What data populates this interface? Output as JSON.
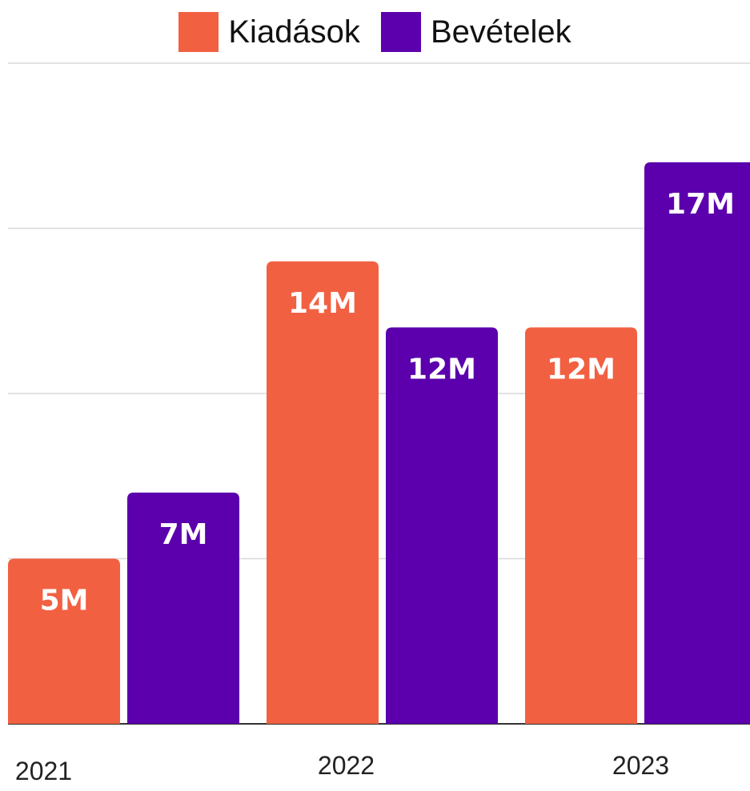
{
  "chart_data": {
    "type": "bar",
    "categories": [
      "2021",
      "2022",
      "2023"
    ],
    "series": [
      {
        "name": "Kiadások",
        "values": [
          5,
          14,
          12
        ],
        "labels": [
          "5M",
          "14M",
          "12M"
        ],
        "color": "#F26042"
      },
      {
        "name": "Bevételek",
        "values": [
          7,
          12,
          17
        ],
        "labels": [
          "7M",
          "12M",
          "17M"
        ],
        "color": "#5B00AC"
      }
    ],
    "ylim": [
      0,
      20
    ],
    "grid": true,
    "legend_position": "top-center",
    "gridline_color": "#D9D9D9",
    "baseline_color": "#333333"
  }
}
